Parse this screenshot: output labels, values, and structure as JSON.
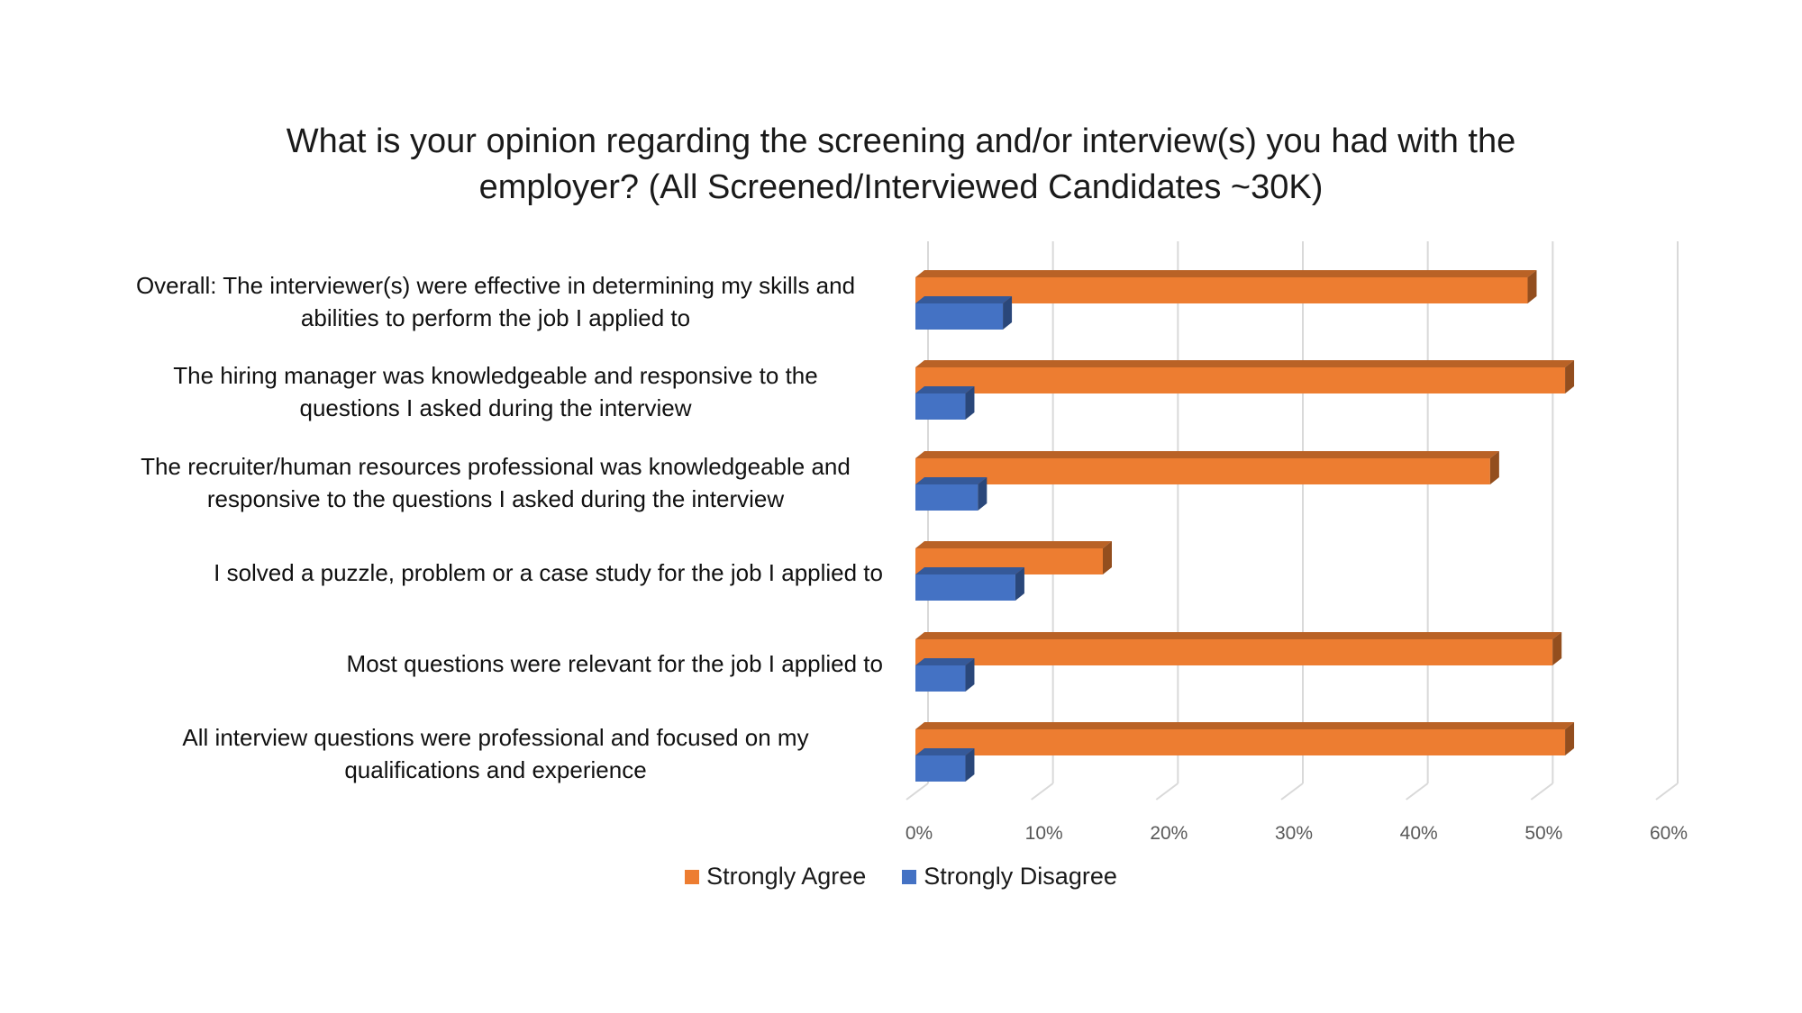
{
  "chart_data": {
    "type": "bar",
    "orientation": "horizontal",
    "title_lines": [
      "What is your opinion regarding the screening and/or interview(s) you had with the",
      "employer? (All Screened/Interviewed Candidates ~30K)"
    ],
    "categories": [
      [
        "Overall: The interviewer(s) were effective in determining my skills and",
        "abilities to perform the job I applied to"
      ],
      [
        "The hiring manager was knowledgeable and responsive to the",
        "questions I asked during the interview"
      ],
      [
        "The recruiter/human resources professional was knowledgeable and",
        "responsive to the questions I asked during the interview"
      ],
      [
        "I solved a puzzle, problem or a case study for the job I applied to"
      ],
      [
        "Most questions were relevant for the job I applied to"
      ],
      [
        "All interview questions were professional and focused on my",
        "qualifications and experience"
      ]
    ],
    "series": [
      {
        "name": "Strongly Agree",
        "color": "#ED7D31",
        "values": [
          49,
          52,
          46,
          15,
          51,
          52
        ]
      },
      {
        "name": "Strongly Disagree",
        "color": "#4472C4",
        "values": [
          7,
          4,
          5,
          8,
          4,
          4
        ]
      }
    ],
    "xlim": [
      0,
      60
    ],
    "x_ticks": [
      "0%",
      "10%",
      "20%",
      "30%",
      "40%",
      "50%",
      "60%"
    ],
    "grid": true,
    "legend_position": "bottom"
  }
}
